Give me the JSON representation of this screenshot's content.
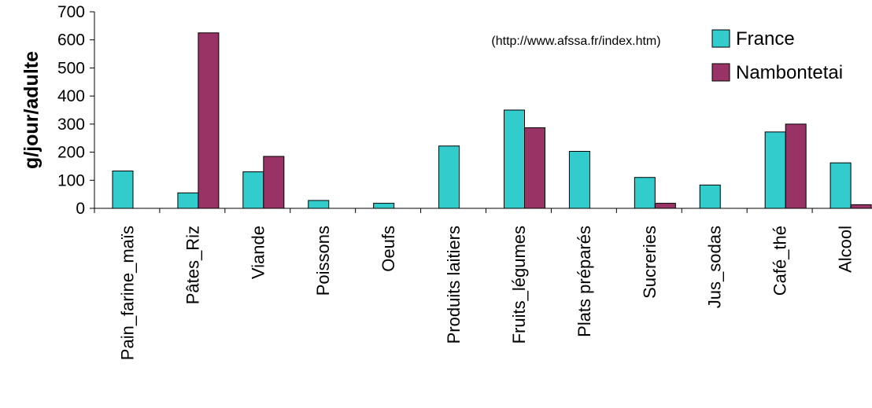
{
  "chart_data": {
    "type": "bar",
    "title": "",
    "xlabel": "",
    "ylabel": "g/jour/adulte",
    "ylim": [
      0,
      700
    ],
    "yticks": [
      0,
      100,
      200,
      300,
      400,
      500,
      600,
      700
    ],
    "grid": false,
    "legend_position": "top-right",
    "annotation": "(http://www.afssa.fr/index.htm)",
    "categories": [
      "Pain_farine_maïs",
      "Pâtes_Riz",
      "Viande",
      "Poissons",
      "Oeufs",
      "Produits laitiers",
      "Fruits_légumes",
      "Plats préparés",
      "Sucreries",
      "Jus_sodas",
      "Café_thé",
      "Alcool"
    ],
    "series": [
      {
        "name": "France",
        "color": "#33CCCC",
        "values": [
          133,
          55,
          130,
          28,
          18,
          222,
          350,
          203,
          110,
          83,
          272,
          162
        ]
      },
      {
        "name": "Nambontetai",
        "color": "#993366",
        "values": [
          0,
          625,
          185,
          0,
          0,
          0,
          287,
          0,
          18,
          0,
          300,
          13
        ]
      }
    ]
  }
}
